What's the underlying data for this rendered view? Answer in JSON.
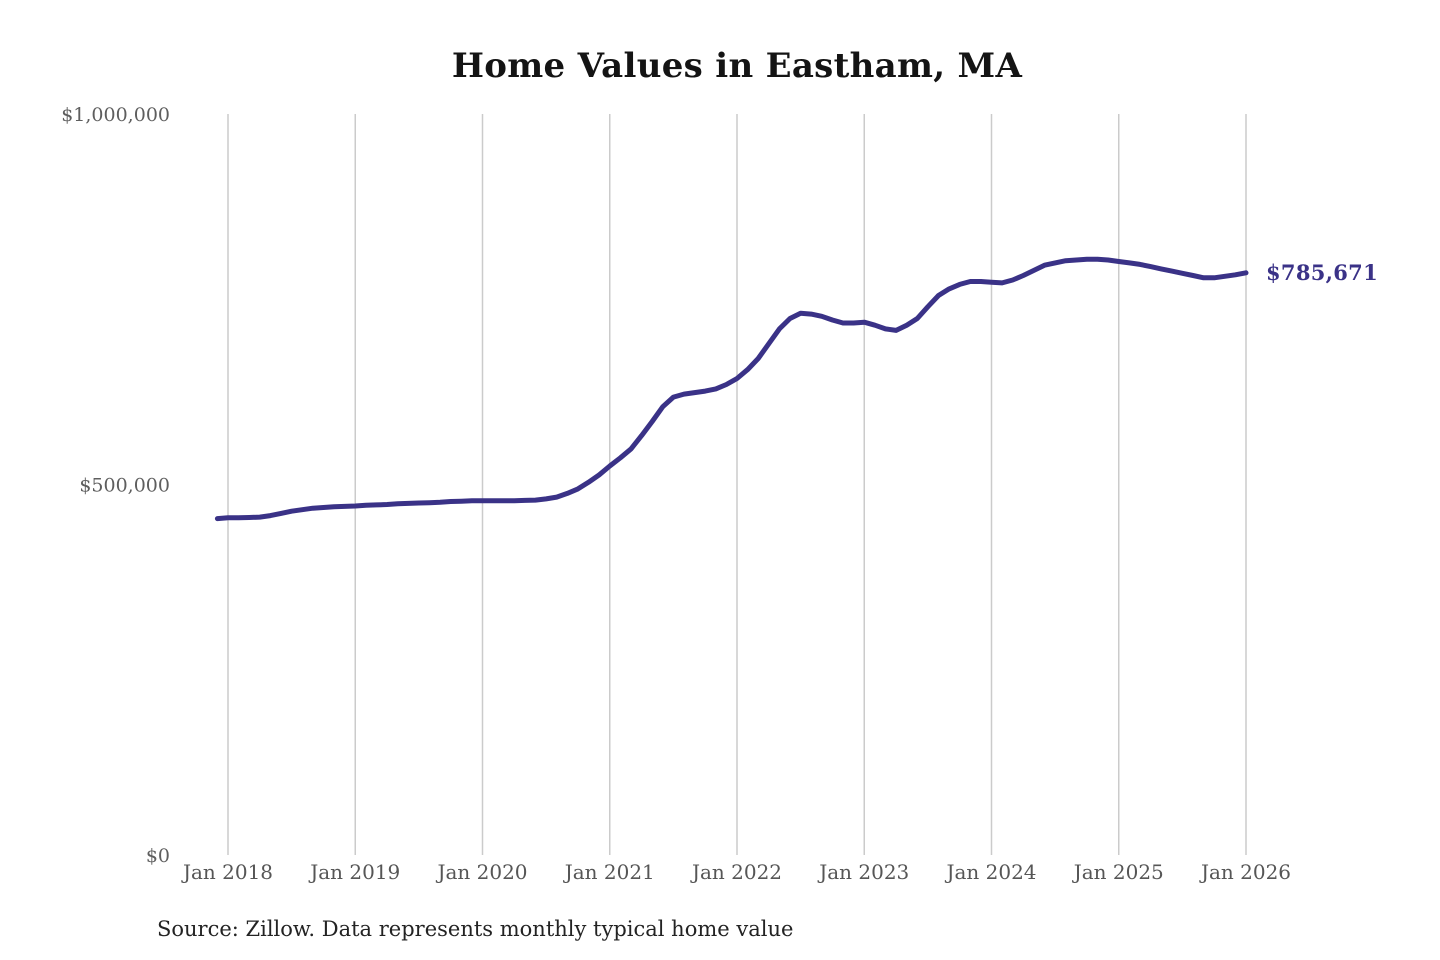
{
  "title": "Home Values in Eastham, MA",
  "annotation": {
    "label": "$785,671"
  },
  "source": "Source: Zillow. Data represents monthly typical home value",
  "colors": {
    "line": "#3a3287",
    "annotation": "#3a3287",
    "gridline": "#cbcbcb",
    "x_tick_label": "#565656",
    "y_tick_label": "#5e5e5e",
    "title": "#141414",
    "source": "#232323",
    "background": "#ffffff"
  },
  "chart_data": {
    "type": "line",
    "title": "Home Values in Eastham, MA",
    "xlabel": "",
    "ylabel": "",
    "legend": "none",
    "grid": "vertical-only",
    "ylim": [
      0,
      1000000
    ],
    "y_ticks": [
      {
        "label": "$0",
        "value": 0
      },
      {
        "label": "$500,000",
        "value": 500000
      },
      {
        "label": "$1,000,000",
        "value": 1000000
      }
    ],
    "x_ticks": [
      "Jan 2018",
      "Jan 2019",
      "Jan 2020",
      "Jan 2021",
      "Jan 2022",
      "Jan 2023",
      "Jan 2024",
      "Jan 2025",
      "Jan 2026"
    ],
    "series": [
      {
        "name": "Monthly typical home value",
        "start_date": "2017-12",
        "frequency": "monthly",
        "end_label": "$785,671",
        "values": [
          454000,
          455000,
          455000,
          455500,
          456000,
          458000,
          461000,
          464000,
          466000,
          468000,
          469000,
          470000,
          470500,
          471000,
          472000,
          472500,
          473000,
          474000,
          474500,
          475000,
          475500,
          476000,
          477000,
          477500,
          478000,
          478000,
          478000,
          478000,
          478000,
          478500,
          479000,
          480500,
          483000,
          488000,
          494000,
          503000,
          513000,
          525000,
          536000,
          548000,
          566000,
          585000,
          605000,
          618000,
          622000,
          624000,
          626000,
          629000,
          635000,
          643000,
          655000,
          670000,
          690000,
          710000,
          724000,
          731000,
          730000,
          727000,
          722000,
          718000,
          718000,
          719000,
          715000,
          710000,
          708000,
          715000,
          724000,
          740000,
          755000,
          764000,
          770000,
          774000,
          774000,
          773000,
          772000,
          776000,
          782000,
          789000,
          796000,
          799000,
          802000,
          803000,
          804000,
          804000,
          803000,
          801000,
          799000,
          797000,
          794000,
          791000,
          788000,
          785000,
          782000,
          779000,
          779000,
          781000,
          783000,
          785671
        ]
      }
    ]
  }
}
